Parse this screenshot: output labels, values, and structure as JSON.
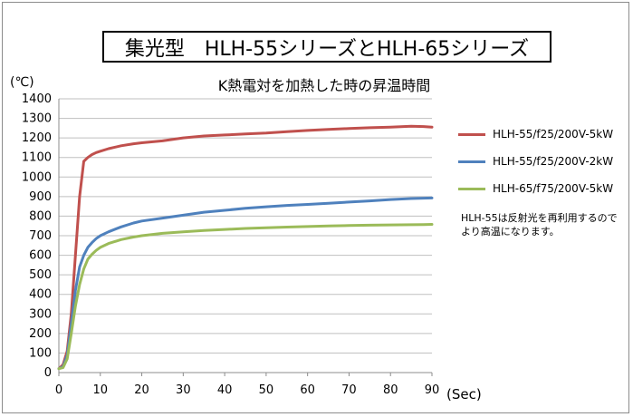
{
  "title": "集光型　HLH-55シリーズとHLH-65シリーズ",
  "subtitle": "K熱電対を加熱した時の昇温時間",
  "y_unit": "(℃)",
  "x_unit": "(Sec)",
  "note": "HLH-55は反射光を再利用するのでより高温になります。",
  "chart_data": {
    "type": "line",
    "title": "K熱電対を加熱した時の昇温時間",
    "xlabel": "(Sec)",
    "ylabel": "(℃)",
    "xlim": [
      0,
      90
    ],
    "ylim": [
      0,
      1400
    ],
    "x_ticks": [
      0,
      10,
      20,
      30,
      40,
      50,
      60,
      70,
      80,
      90
    ],
    "y_ticks": [
      0,
      100,
      200,
      300,
      400,
      500,
      600,
      700,
      800,
      900,
      1000,
      1100,
      1200,
      1300,
      1400
    ],
    "grid": true,
    "legend_position": "right",
    "x": [
      0,
      1,
      2,
      3,
      4,
      5,
      6,
      7,
      8,
      9,
      10,
      12,
      15,
      18,
      20,
      25,
      30,
      35,
      40,
      45,
      50,
      55,
      60,
      65,
      70,
      75,
      80,
      85,
      88,
      90
    ],
    "series": [
      {
        "name": "HLH-55/f25/200V-5kW",
        "color": "#c0504d",
        "values": [
          20,
          40,
          110,
          300,
          600,
          900,
          1080,
          1100,
          1115,
          1125,
          1132,
          1145,
          1160,
          1170,
          1175,
          1185,
          1200,
          1210,
          1215,
          1220,
          1225,
          1232,
          1238,
          1244,
          1248,
          1252,
          1255,
          1260,
          1258,
          1255
        ]
      },
      {
        "name": "HLH-55/f25/200V-2kW",
        "color": "#4f81bd",
        "values": [
          20,
          30,
          90,
          250,
          420,
          540,
          600,
          640,
          665,
          685,
          700,
          720,
          745,
          765,
          775,
          790,
          805,
          820,
          830,
          840,
          848,
          855,
          860,
          866,
          872,
          878,
          885,
          890,
          892,
          893
        ]
      },
      {
        "name": "HLH-65/f75/200V-5kW",
        "color": "#9bbb59",
        "values": [
          20,
          25,
          70,
          200,
          340,
          450,
          530,
          580,
          605,
          625,
          640,
          660,
          680,
          693,
          700,
          712,
          720,
          727,
          732,
          737,
          741,
          744,
          747,
          750,
          752,
          754,
          755,
          756,
          757,
          758
        ]
      }
    ]
  }
}
